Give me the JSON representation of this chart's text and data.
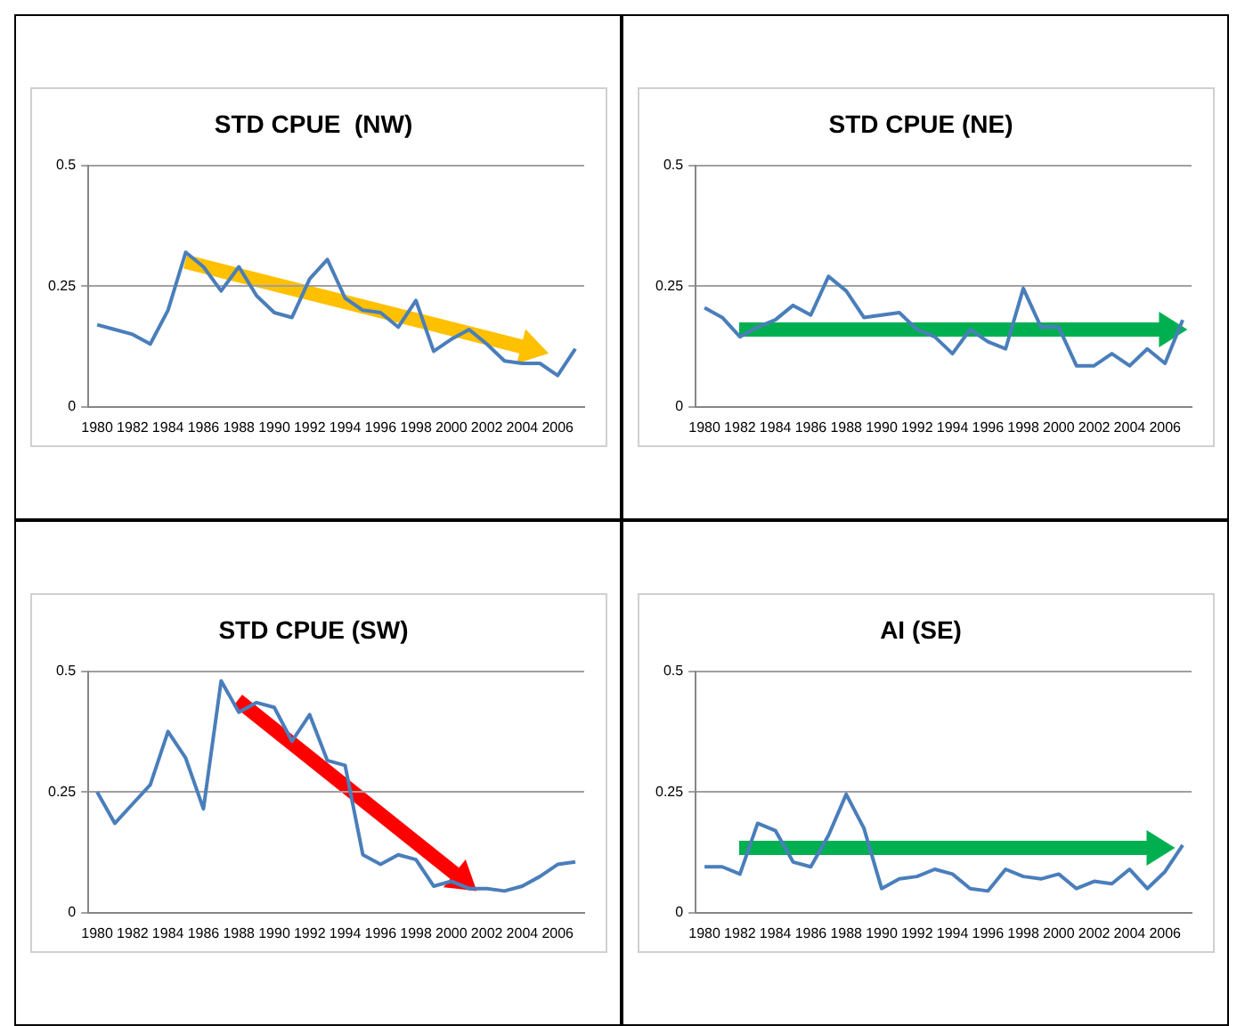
{
  "chart_data": [
    {
      "type": "line",
      "title": "STD CPUE  (NW)",
      "x": [
        1980,
        1981,
        1982,
        1983,
        1984,
        1985,
        1986,
        1987,
        1988,
        1989,
        1990,
        1991,
        1992,
        1993,
        1994,
        1995,
        1996,
        1997,
        1998,
        1999,
        2000,
        2001,
        2002,
        2003,
        2004,
        2005,
        2006,
        2007
      ],
      "xlim": [
        1979.5,
        2007.5
      ],
      "xticks": [
        1980,
        1982,
        1984,
        1986,
        1988,
        1990,
        1992,
        1994,
        1996,
        1998,
        2000,
        2002,
        2004,
        2006
      ],
      "ylim": [
        0,
        0.5
      ],
      "yticks": [
        0,
        0.25,
        0.5
      ],
      "grid": "y",
      "legend": false,
      "marker": "none",
      "line_style": "solid",
      "series": [
        {
          "color": "#4a7ebb",
          "values": [
            0.17,
            0.16,
            0.15,
            0.13,
            0.2,
            0.32,
            0.29,
            0.24,
            0.29,
            0.23,
            0.195,
            0.185,
            0.265,
            0.305,
            0.225,
            0.2,
            0.195,
            0.165,
            0.22,
            0.115,
            0.14,
            0.16,
            0.13,
            0.095,
            0.09,
            0.09,
            0.065,
            0.12
          ]
        }
      ]
    },
    {
      "type": "line",
      "title": "STD CPUE (NE)",
      "x": [
        1980,
        1981,
        1982,
        1983,
        1984,
        1985,
        1986,
        1987,
        1988,
        1989,
        1990,
        1991,
        1992,
        1993,
        1994,
        1995,
        1996,
        1997,
        1998,
        1999,
        2000,
        2001,
        2002,
        2003,
        2004,
        2005,
        2006,
        2007
      ],
      "xlim": [
        1979.5,
        2007.5
      ],
      "xticks": [
        1980,
        1982,
        1984,
        1986,
        1988,
        1990,
        1992,
        1994,
        1996,
        1998,
        2000,
        2002,
        2004,
        2006
      ],
      "ylim": [
        0,
        0.5
      ],
      "yticks": [
        0,
        0.25,
        0.5
      ],
      "grid": "y",
      "legend": false,
      "marker": "none",
      "line_style": "solid",
      "series": [
        {
          "color": "#4a7ebb",
          "values": [
            0.205,
            0.185,
            0.145,
            0.165,
            0.18,
            0.21,
            0.19,
            0.27,
            0.24,
            0.185,
            0.19,
            0.195,
            0.16,
            0.145,
            0.11,
            0.16,
            0.135,
            0.12,
            0.245,
            0.165,
            0.165,
            0.085,
            0.085,
            0.11,
            0.085,
            0.12,
            0.09,
            0.18
          ]
        }
      ]
    },
    {
      "type": "line",
      "title": "STD CPUE (SW)",
      "x": [
        1980,
        1981,
        1982,
        1983,
        1984,
        1985,
        1986,
        1987,
        1988,
        1989,
        1990,
        1991,
        1992,
        1993,
        1994,
        1995,
        1996,
        1997,
        1998,
        1999,
        2000,
        2001,
        2002,
        2003,
        2004,
        2005,
        2006,
        2007
      ],
      "xlim": [
        1979.5,
        2007.5
      ],
      "xticks": [
        1980,
        1982,
        1984,
        1986,
        1988,
        1990,
        1992,
        1994,
        1996,
        1998,
        2000,
        2002,
        2004,
        2006
      ],
      "ylim": [
        0,
        0.5
      ],
      "yticks": [
        0,
        0.25,
        0.5
      ],
      "grid": "y",
      "legend": false,
      "marker": "none",
      "line_style": "solid",
      "series": [
        {
          "color": "#4a7ebb",
          "values": [
            0.25,
            0.185,
            0.225,
            0.265,
            0.375,
            0.32,
            0.215,
            0.48,
            0.415,
            0.435,
            0.425,
            0.355,
            0.41,
            0.315,
            0.305,
            0.12,
            0.1,
            0.12,
            0.11,
            0.055,
            0.065,
            0.05,
            0.05,
            0.045,
            0.055,
            0.075,
            0.1,
            0.105
          ]
        }
      ]
    },
    {
      "type": "line",
      "title": "AI (SE)",
      "x": [
        1980,
        1981,
        1982,
        1983,
        1984,
        1985,
        1986,
        1987,
        1988,
        1989,
        1990,
        1991,
        1992,
        1993,
        1994,
        1995,
        1996,
        1997,
        1998,
        1999,
        2000,
        2001,
        2002,
        2003,
        2004,
        2005,
        2006,
        2007
      ],
      "xlim": [
        1979.5,
        2007.5
      ],
      "xticks": [
        1980,
        1982,
        1984,
        1986,
        1988,
        1990,
        1992,
        1994,
        1996,
        1998,
        2000,
        2002,
        2004,
        2006
      ],
      "ylim": [
        0,
        0.5
      ],
      "yticks": [
        0,
        0.25,
        0.5
      ],
      "grid": "y",
      "legend": false,
      "marker": "none",
      "line_style": "solid",
      "series": [
        {
          "color": "#4a7ebb",
          "values": [
            0.095,
            0.095,
            0.08,
            0.185,
            0.17,
            0.105,
            0.095,
            0.16,
            0.245,
            0.175,
            0.05,
            0.07,
            0.075,
            0.09,
            0.08,
            0.05,
            0.045,
            0.09,
            0.075,
            0.07,
            0.08,
            0.05,
            0.065,
            0.06,
            0.09,
            0.05,
            0.085,
            0.14
          ]
        }
      ]
    }
  ]
}
